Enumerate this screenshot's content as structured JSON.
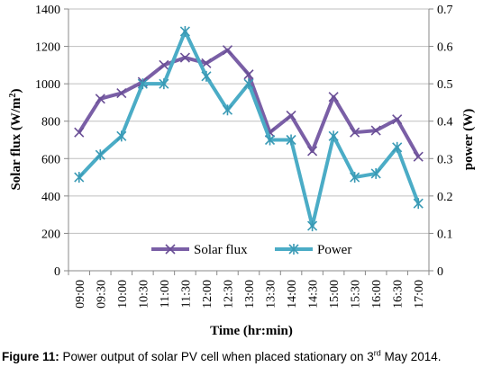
{
  "chart_data": {
    "type": "line",
    "xlabel": "Time (hr:min)",
    "ylabel_left": "Solar flux (W/m²)",
    "ylabel_left_parts": [
      "Solar flux (W/m",
      "2",
      ")"
    ],
    "ylabel_right": "power (W)",
    "ylim_left": [
      0,
      1400
    ],
    "ylim_right": [
      0,
      0.7
    ],
    "yticks_left": [
      "0",
      "200",
      "400",
      "600",
      "800",
      "1000",
      "1200",
      "1400"
    ],
    "yticks_right": [
      "0",
      "0.1",
      "0.2",
      "0.3",
      "0.4",
      "0.5",
      "0.6",
      "0.7"
    ],
    "grid": "horizontal",
    "legend_position": "bottom-center",
    "categories": [
      "09:00",
      "09:30",
      "10:00",
      "10:30",
      "11:00",
      "11:30",
      "12:00",
      "12:30",
      "13:00",
      "13:30",
      "14:00",
      "14:30",
      "15:00",
      "15:30",
      "16:00",
      "16:30",
      "17:00"
    ],
    "series": [
      {
        "name": "Solar flux",
        "axis": "left",
        "color": "#7a5fa6",
        "values": [
          740,
          920,
          950,
          1010,
          1100,
          1140,
          1110,
          1180,
          1050,
          740,
          830,
          640,
          930,
          740,
          750,
          810,
          610
        ]
      },
      {
        "name": "Power",
        "axis": "right",
        "color": "#4bacc6",
        "values": [
          0.25,
          0.31,
          0.36,
          0.5,
          0.5,
          0.64,
          0.52,
          0.43,
          0.5,
          0.35,
          0.35,
          0.12,
          0.36,
          0.25,
          0.26,
          0.33,
          0.18
        ]
      }
    ]
  },
  "caption": {
    "label": "Figure 11:",
    "text_before_sup": " Power output of solar PV cell when placed stationary on 3",
    "sup": "rd",
    "text_after_sup": " May 2014."
  }
}
